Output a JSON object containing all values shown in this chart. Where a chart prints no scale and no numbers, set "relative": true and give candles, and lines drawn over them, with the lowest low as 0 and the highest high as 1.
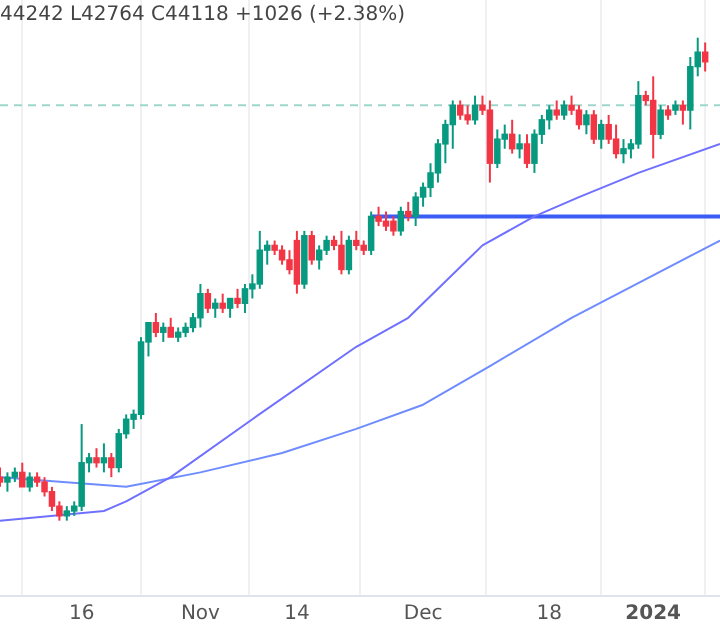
{
  "chart_data": {
    "type": "candlestick",
    "relative": true,
    "annotations": [
      "44242 L42764 C44118 +1026 (+2.38%)"
    ],
    "x": [
      "2023-10-05",
      "2023-10-06",
      "2023-10-07",
      "2023-10-08",
      "2023-10-09",
      "2023-10-10",
      "2023-10-11",
      "2023-10-12",
      "2023-10-13",
      "2023-10-14",
      "2023-10-15",
      "2023-10-16",
      "2023-10-17",
      "2023-10-18",
      "2023-10-19",
      "2023-10-20",
      "2023-10-21",
      "2023-10-22",
      "2023-10-23",
      "2023-10-24",
      "2023-10-25",
      "2023-10-26",
      "2023-10-27",
      "2023-10-28",
      "2023-10-29",
      "2023-10-30",
      "2023-10-31",
      "2023-11-01",
      "2023-11-02",
      "2023-11-03",
      "2023-11-04",
      "2023-11-05",
      "2023-11-06",
      "2023-11-07",
      "2023-11-08",
      "2023-11-09",
      "2023-11-10",
      "2023-11-11",
      "2023-11-12",
      "2023-11-13",
      "2023-11-14",
      "2023-11-15",
      "2023-11-16",
      "2023-11-17",
      "2023-11-18",
      "2023-11-19",
      "2023-11-20",
      "2023-11-21",
      "2023-11-22",
      "2023-11-23",
      "2023-11-24",
      "2023-11-25",
      "2023-11-26",
      "2023-11-27",
      "2023-11-28",
      "2023-11-29",
      "2023-11-30",
      "2023-12-01",
      "2023-12-02",
      "2023-12-03",
      "2023-12-04",
      "2023-12-05",
      "2023-12-06",
      "2023-12-07",
      "2023-12-08",
      "2023-12-09",
      "2023-12-10",
      "2023-12-11",
      "2023-12-12",
      "2023-12-13",
      "2023-12-14",
      "2023-12-15",
      "2023-12-16",
      "2023-12-17",
      "2023-12-18",
      "2023-12-19",
      "2023-12-20",
      "2023-12-21",
      "2023-12-22",
      "2023-12-23",
      "2023-12-24",
      "2023-12-25",
      "2023-12-26",
      "2023-12-27",
      "2023-12-28",
      "2023-12-29",
      "2023-12-30",
      "2023-12-31",
      "2024-01-01",
      "2024-01-02",
      "2024-01-03",
      "2024-01-04",
      "2024-01-05",
      "2024-01-06",
      "2024-01-07",
      "2024-01-08"
    ],
    "ohlc": [
      [
        0.09,
        0.11,
        0.07,
        0.08
      ],
      [
        0.08,
        0.1,
        0.06,
        0.09
      ],
      [
        0.09,
        0.11,
        0.08,
        0.1
      ],
      [
        0.1,
        0.12,
        0.07,
        0.07
      ],
      [
        0.07,
        0.1,
        0.06,
        0.09
      ],
      [
        0.09,
        0.1,
        0.07,
        0.08
      ],
      [
        0.08,
        0.09,
        0.05,
        0.06
      ],
      [
        0.06,
        0.07,
        0.02,
        0.03
      ],
      [
        0.03,
        0.04,
        0.0,
        0.01
      ],
      [
        0.01,
        0.03,
        0.0,
        0.02
      ],
      [
        0.02,
        0.04,
        0.01,
        0.03
      ],
      [
        0.03,
        0.2,
        0.02,
        0.12
      ],
      [
        0.12,
        0.14,
        0.1,
        0.13
      ],
      [
        0.13,
        0.15,
        0.11,
        0.12
      ],
      [
        0.12,
        0.16,
        0.1,
        0.13
      ],
      [
        0.13,
        0.14,
        0.09,
        0.11
      ],
      [
        0.11,
        0.19,
        0.1,
        0.18
      ],
      [
        0.18,
        0.22,
        0.17,
        0.21
      ],
      [
        0.21,
        0.23,
        0.19,
        0.22
      ],
      [
        0.22,
        0.38,
        0.21,
        0.37
      ],
      [
        0.37,
        0.41,
        0.34,
        0.41
      ],
      [
        0.41,
        0.43,
        0.38,
        0.39
      ],
      [
        0.39,
        0.41,
        0.37,
        0.4
      ],
      [
        0.4,
        0.42,
        0.38,
        0.38
      ],
      [
        0.38,
        0.4,
        0.37,
        0.39
      ],
      [
        0.39,
        0.41,
        0.38,
        0.4
      ],
      [
        0.4,
        0.43,
        0.39,
        0.42
      ],
      [
        0.42,
        0.49,
        0.4,
        0.47
      ],
      [
        0.47,
        0.48,
        0.43,
        0.44
      ],
      [
        0.44,
        0.46,
        0.42,
        0.45
      ],
      [
        0.45,
        0.47,
        0.43,
        0.44
      ],
      [
        0.44,
        0.46,
        0.42,
        0.46
      ],
      [
        0.46,
        0.48,
        0.44,
        0.45
      ],
      [
        0.45,
        0.49,
        0.43,
        0.48
      ],
      [
        0.48,
        0.51,
        0.46,
        0.49
      ],
      [
        0.49,
        0.6,
        0.48,
        0.56
      ],
      [
        0.56,
        0.58,
        0.53,
        0.57
      ],
      [
        0.57,
        0.58,
        0.55,
        0.56
      ],
      [
        0.56,
        0.57,
        0.53,
        0.54
      ],
      [
        0.54,
        0.56,
        0.51,
        0.52
      ],
      [
        0.58,
        0.6,
        0.47,
        0.49
      ],
      [
        0.49,
        0.6,
        0.48,
        0.59
      ],
      [
        0.59,
        0.6,
        0.53,
        0.54
      ],
      [
        0.54,
        0.57,
        0.52,
        0.56
      ],
      [
        0.56,
        0.59,
        0.55,
        0.58
      ],
      [
        0.58,
        0.59,
        0.56,
        0.57
      ],
      [
        0.57,
        0.6,
        0.51,
        0.52
      ],
      [
        0.52,
        0.59,
        0.51,
        0.58
      ],
      [
        0.58,
        0.6,
        0.56,
        0.57
      ],
      [
        0.57,
        0.58,
        0.55,
        0.56
      ],
      [
        0.56,
        0.64,
        0.55,
        0.63
      ],
      [
        0.63,
        0.65,
        0.61,
        0.62
      ],
      [
        0.62,
        0.64,
        0.6,
        0.61
      ],
      [
        0.62,
        0.63,
        0.59,
        0.6
      ],
      [
        0.6,
        0.65,
        0.59,
        0.64
      ],
      [
        0.64,
        0.66,
        0.62,
        0.63
      ],
      [
        0.63,
        0.68,
        0.61,
        0.67
      ],
      [
        0.67,
        0.7,
        0.65,
        0.69
      ],
      [
        0.69,
        0.74,
        0.67,
        0.72
      ],
      [
        0.72,
        0.79,
        0.7,
        0.78
      ],
      [
        0.78,
        0.83,
        0.74,
        0.82
      ],
      [
        0.82,
        0.87,
        0.77,
        0.86
      ],
      [
        0.86,
        0.87,
        0.83,
        0.84
      ],
      [
        0.84,
        0.86,
        0.82,
        0.83
      ],
      [
        0.83,
        0.88,
        0.82,
        0.86
      ],
      [
        0.86,
        0.88,
        0.84,
        0.85
      ],
      [
        0.85,
        0.87,
        0.7,
        0.74
      ],
      [
        0.74,
        0.81,
        0.73,
        0.79
      ],
      [
        0.79,
        0.82,
        0.77,
        0.8
      ],
      [
        0.8,
        0.83,
        0.76,
        0.77
      ],
      [
        0.77,
        0.8,
        0.75,
        0.78
      ],
      [
        0.78,
        0.8,
        0.73,
        0.74
      ],
      [
        0.74,
        0.81,
        0.72,
        0.8
      ],
      [
        0.8,
        0.84,
        0.78,
        0.83
      ],
      [
        0.83,
        0.86,
        0.81,
        0.85
      ],
      [
        0.85,
        0.87,
        0.83,
        0.84
      ],
      [
        0.84,
        0.87,
        0.83,
        0.86
      ],
      [
        0.86,
        0.88,
        0.84,
        0.85
      ],
      [
        0.85,
        0.86,
        0.81,
        0.82
      ],
      [
        0.82,
        0.85,
        0.8,
        0.84
      ],
      [
        0.84,
        0.85,
        0.78,
        0.79
      ],
      [
        0.79,
        0.83,
        0.77,
        0.82
      ],
      [
        0.82,
        0.84,
        0.78,
        0.79
      ],
      [
        0.79,
        0.82,
        0.75,
        0.76
      ],
      [
        0.76,
        0.79,
        0.74,
        0.77
      ],
      [
        0.77,
        0.79,
        0.75,
        0.78
      ],
      [
        0.78,
        0.91,
        0.77,
        0.88
      ],
      [
        0.88,
        0.89,
        0.86,
        0.87
      ],
      [
        0.87,
        0.92,
        0.75,
        0.8
      ],
      [
        0.8,
        0.86,
        0.79,
        0.85
      ],
      [
        0.85,
        0.86,
        0.83,
        0.84
      ],
      [
        0.85,
        0.87,
        0.84,
        0.86
      ],
      [
        0.86,
        0.87,
        0.82,
        0.85
      ],
      [
        0.85,
        0.96,
        0.81,
        0.94
      ],
      [
        0.94,
        1.0,
        0.92,
        0.97
      ],
      [
        0.97,
        0.99,
        0.93,
        0.95
      ]
    ],
    "colors": [
      "#f23645",
      "#089981",
      "#089981",
      "#f23645",
      "#089981",
      "#f23645",
      "#f23645",
      "#f23645",
      "#f23645",
      "#089981",
      "#089981",
      "#089981",
      "#089981",
      "#f23645",
      "#089981",
      "#f23645",
      "#089981",
      "#089981",
      "#089981",
      "#089981",
      "#089981",
      "#f23645",
      "#089981",
      "#f23645",
      "#089981",
      "#089981",
      "#089981",
      "#089981",
      "#f23645",
      "#089981",
      "#f23645",
      "#089981",
      "#f23645",
      "#089981",
      "#089981",
      "#089981",
      "#089981",
      "#f23645",
      "#f23645",
      "#f23645",
      "#f23645",
      "#089981",
      "#f23645",
      "#089981",
      "#089981",
      "#f23645",
      "#f23645",
      "#089981",
      "#f23645",
      "#f23645",
      "#089981",
      "#f23645",
      "#f23645",
      "#f23645",
      "#089981",
      "#f23645",
      "#089981",
      "#089981",
      "#089981",
      "#089981",
      "#089981",
      "#089981",
      "#f23645",
      "#f23645",
      "#089981",
      "#f23645",
      "#f23645",
      "#089981",
      "#089981",
      "#f23645",
      "#089981",
      "#f23645",
      "#089981",
      "#089981",
      "#089981",
      "#f23645",
      "#089981",
      "#f23645",
      "#f23645",
      "#089981",
      "#f23645",
      "#089981",
      "#f23645",
      "#f23645",
      "#089981",
      "#089981",
      "#089981",
      "#f23645",
      "#f23645",
      "#089981",
      "#f23645",
      "#089981",
      "#f23645",
      "#089981",
      "#089981",
      "#f23645"
    ],
    "series": [
      {
        "type": "line",
        "color": "#7070ff",
        "x": [
          "2023-10-05",
          "2023-10-19",
          "2023-10-22",
          "2023-10-28",
          "2023-11-08",
          "2023-11-22",
          "2023-11-29",
          "2023-12-09",
          "2023-12-16",
          "2023-12-22",
          "2023-12-30",
          "2024-01-10"
        ],
        "values": [
          0.0,
          0.02,
          0.04,
          0.09,
          0.21,
          0.36,
          0.42,
          0.57,
          0.63,
          0.67,
          0.72,
          0.78
        ]
      },
      {
        "type": "line",
        "color": "#6f8cff",
        "x": [
          "2023-10-05",
          "2023-10-22",
          "2023-11-01",
          "2023-11-12",
          "2023-11-22",
          "2023-12-01",
          "2023-12-10",
          "2023-12-21",
          "2024-01-10"
        ],
        "values": [
          0.09,
          0.07,
          0.1,
          0.14,
          0.19,
          0.24,
          0.32,
          0.42,
          0.58
        ]
      },
      {
        "type": "line",
        "color": "#3b5cf5",
        "x": [
          "2023-11-24",
          "2024-01-10"
        ],
        "values": [
          0.63,
          0.63
        ]
      }
    ],
    "ref_lines": [
      {
        "axis": "y",
        "value": 0.86,
        "color": "#9ed6cc",
        "line_style": "dashed"
      }
    ],
    "xlim": [
      "2023-10-05",
      "2024-01-10"
    ],
    "xticks": [
      {
        "value": "2023-10-16",
        "label": "16"
      },
      {
        "value": "2023-11-01",
        "label": "Nov"
      },
      {
        "value": "2023-11-14",
        "label": "14"
      },
      {
        "value": "2023-12-01",
        "label": "Dec"
      },
      {
        "value": "2023-12-18",
        "label": "18"
      },
      {
        "value": "2024-01-01",
        "label": "2024"
      }
    ],
    "grid": "x"
  }
}
